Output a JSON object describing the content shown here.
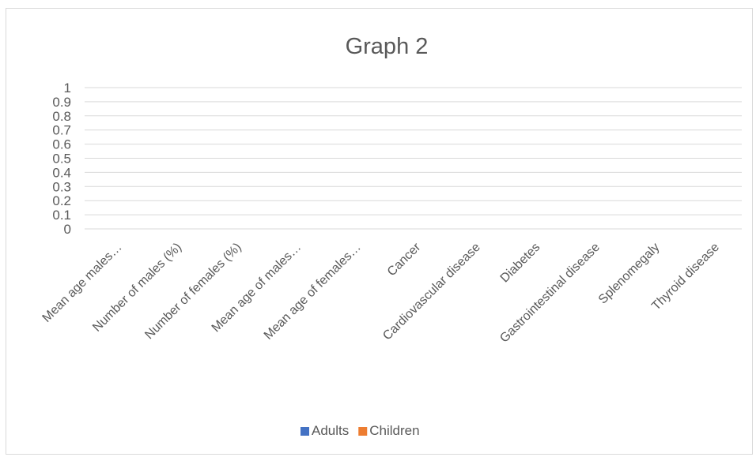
{
  "chart_data": {
    "type": "bar",
    "title": "Graph 2",
    "categories": [
      "Mean age males…",
      "Number of males (%)",
      "Number of females (%)",
      "Mean age of males…",
      "Mean age of females…",
      "Cancer",
      "Cardiovascular disease",
      "Diabetes",
      "Gastrointestinal disease",
      "Splenomegaly",
      "Thyroid disease"
    ],
    "series": [
      {
        "name": "Adults",
        "color": "#4472C4",
        "values": [
          0,
          0,
          0,
          0,
          0,
          0,
          0,
          0,
          0,
          0,
          0
        ]
      },
      {
        "name": "Children",
        "color": "#ED7D31",
        "values": [
          0,
          0,
          0,
          0,
          0,
          0,
          0,
          0,
          0,
          0,
          0
        ]
      }
    ],
    "yticks": [
      "0",
      "0.1",
      "0.2",
      "0.3",
      "0.4",
      "0.5",
      "0.6",
      "0.7",
      "0.8",
      "0.9",
      "1"
    ],
    "ylim": [
      0,
      1
    ],
    "grid": true,
    "legend": "bottom"
  }
}
